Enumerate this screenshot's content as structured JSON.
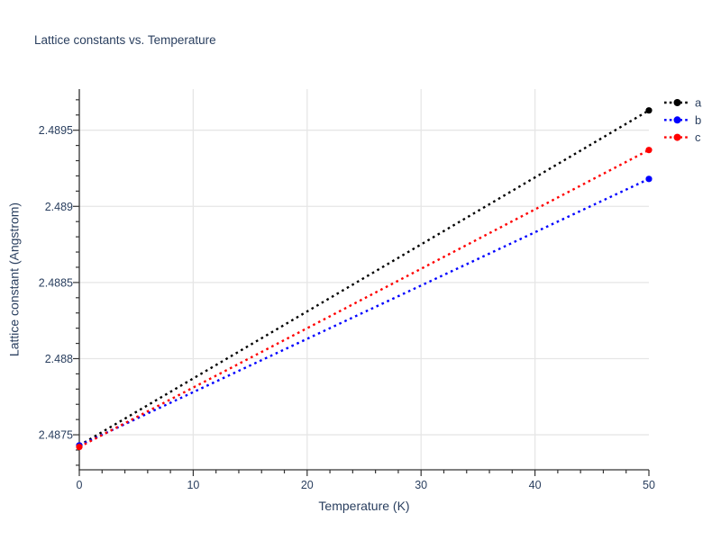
{
  "figure": {
    "title": "Lattice constants vs. Temperature"
  },
  "colors": {
    "text": "#2a3f5f",
    "axis": "#333333",
    "grid": "#e6e6e6",
    "background": "#ffffff"
  },
  "chart_data": {
    "type": "line",
    "title": "Lattice constants vs. Temperature",
    "xlabel": "Temperature (K)",
    "ylabel": "Lattice constant (Angstrom)",
    "xlim": [
      0,
      50
    ],
    "ylim": [
      2.48727,
      2.48977
    ],
    "grid": "major-only",
    "x_ticks": [
      {
        "value": 0,
        "label": "0"
      },
      {
        "value": 10,
        "label": "10"
      },
      {
        "value": 20,
        "label": "20"
      },
      {
        "value": 30,
        "label": "30"
      },
      {
        "value": 40,
        "label": "40"
      },
      {
        "value": 50,
        "label": "50"
      }
    ],
    "y_ticks": [
      {
        "value": 2.4875,
        "label": "2.4875"
      },
      {
        "value": 2.488,
        "label": "2.488"
      },
      {
        "value": 2.4885,
        "label": "2.4885"
      },
      {
        "value": 2.489,
        "label": "2.489"
      },
      {
        "value": 2.4895,
        "label": "2.4895"
      }
    ],
    "x_minor_step": 2,
    "y_minor_step": 0.0001,
    "legend": {
      "position": "outside-top-right",
      "entries": [
        "a",
        "b",
        "c"
      ]
    },
    "series": [
      {
        "name": "a",
        "color": "#000000",
        "line_style": "dotted",
        "marker": "circle",
        "x": [
          0,
          50
        ],
        "y": [
          2.48743,
          2.48963
        ]
      },
      {
        "name": "b",
        "color": "#0000ff",
        "line_style": "dotted",
        "marker": "circle",
        "x": [
          0,
          50
        ],
        "y": [
          2.48743,
          2.48918
        ]
      },
      {
        "name": "c",
        "color": "#ff0000",
        "line_style": "dotted",
        "marker": "circle",
        "x": [
          0,
          50
        ],
        "y": [
          2.48742,
          2.48937
        ]
      }
    ]
  }
}
